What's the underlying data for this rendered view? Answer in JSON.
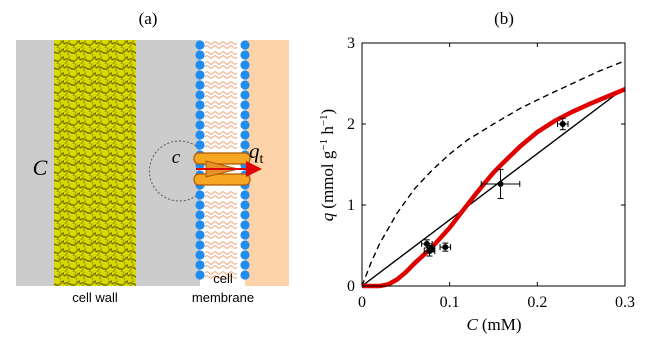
{
  "panel_a": {
    "label": "(a)",
    "c_outside": "C",
    "c_inside": "c",
    "flux_symbol": "q",
    "flux_subscript": "t",
    "wall_label": "cell wall",
    "membrane_label_1": "cell",
    "membrane_label_2": "membrane",
    "colors": {
      "background": "#cccccc",
      "wall": "#d8d800",
      "membrane_heads": "#1f8cf0",
      "membrane_tails": "#f2a070",
      "cytoplasm": "#fcd3a8",
      "transporter": "#f5a623",
      "arrow": "#e00000"
    }
  },
  "chart_data": {
    "label": "(b)",
    "type": "line",
    "xlabel": "C (mM)",
    "xlabel_sym": "C",
    "xlabel_unit": "(mM)",
    "ylabel": "q (mmol g−1 h−1)",
    "ylabel_sym": "q",
    "ylabel_unit_1": "(mmol g",
    "ylabel_sup_1": "−1",
    "ylabel_unit_2": " h",
    "ylabel_sup_2": "−1",
    "ylabel_unit_3": ")",
    "xlim": [
      0,
      0.3
    ],
    "ylim": [
      0,
      3
    ],
    "xticks": [
      "0",
      "0.1",
      "0.2",
      "0.3"
    ],
    "yticks": [
      "0",
      "1",
      "2",
      "3"
    ],
    "grid": false,
    "series": [
      {
        "style": "dashed",
        "color": "#000000",
        "x": [
          0,
          0.01,
          0.02,
          0.04,
          0.06,
          0.08,
          0.1,
          0.12,
          0.15,
          0.18,
          0.21,
          0.24,
          0.27,
          0.3
        ],
        "y": [
          0,
          0.28,
          0.52,
          0.9,
          1.2,
          1.43,
          1.63,
          1.8,
          2.0,
          2.19,
          2.35,
          2.5,
          2.65,
          2.78
        ]
      },
      {
        "style": "solid",
        "color": "#000000",
        "x": [
          0,
          0.3
        ],
        "y": [
          0,
          2.45
        ]
      },
      {
        "style": "solid-thick",
        "color": "#e00000",
        "x": [
          0,
          0.02,
          0.03,
          0.04,
          0.05,
          0.06,
          0.07,
          0.08,
          0.09,
          0.1,
          0.11,
          0.12,
          0.13,
          0.14,
          0.15,
          0.16,
          0.18,
          0.2,
          0.22,
          0.24,
          0.26,
          0.28,
          0.3
        ],
        "y": [
          0,
          0,
          0.02,
          0.08,
          0.17,
          0.28,
          0.38,
          0.48,
          0.6,
          0.72,
          0.86,
          1.0,
          1.14,
          1.27,
          1.4,
          1.51,
          1.72,
          1.9,
          2.04,
          2.15,
          2.25,
          2.34,
          2.43
        ]
      }
    ],
    "points": [
      {
        "x": 0.074,
        "y": 0.52,
        "xerr": 0.006,
        "yerr": 0.05
      },
      {
        "x": 0.077,
        "y": 0.43,
        "xerr": 0.006,
        "yerr": 0.06
      },
      {
        "x": 0.079,
        "y": 0.46,
        "xerr": 0.004,
        "yerr": 0.04
      },
      {
        "x": 0.095,
        "y": 0.48,
        "xerr": 0.006,
        "yerr": 0.05
      },
      {
        "x": 0.158,
        "y": 1.26,
        "xerr": 0.022,
        "yerr": 0.18
      },
      {
        "x": 0.229,
        "y": 2.0,
        "xerr": 0.006,
        "yerr": 0.07
      }
    ]
  }
}
